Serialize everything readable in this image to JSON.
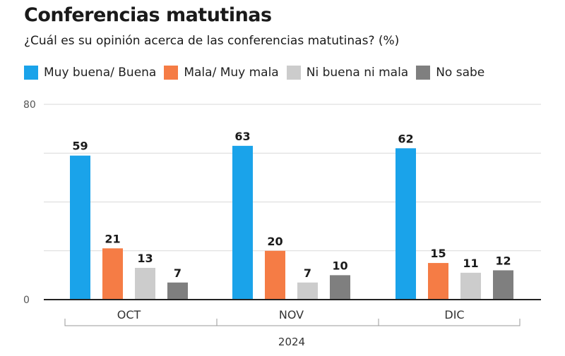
{
  "chart_data": {
    "type": "bar",
    "title": "Conferencias matutinas",
    "subtitle": "¿Cuál es su opinión acerca de las conferencias matutinas? (%)",
    "categories": [
      "OCT",
      "NOV",
      "DIC"
    ],
    "group_label": "2024",
    "series": [
      {
        "name": "Muy buena/ Buena",
        "color": "#1aa3ea",
        "values": [
          59,
          63,
          62
        ]
      },
      {
        "name": "Mala/ Muy mala",
        "color": "#f57c45",
        "values": [
          21,
          20,
          15
        ]
      },
      {
        "name": "Ni buena ni mala",
        "color": "#cccccc",
        "values": [
          13,
          7,
          11
        ]
      },
      {
        "name": "No sabe",
        "color": "#7f7f7f",
        "values": [
          7,
          10,
          12
        ]
      }
    ],
    "ylim": [
      0,
      80
    ],
    "yticks": [
      "0",
      "80"
    ],
    "grid": true,
    "legend": "top-left"
  }
}
